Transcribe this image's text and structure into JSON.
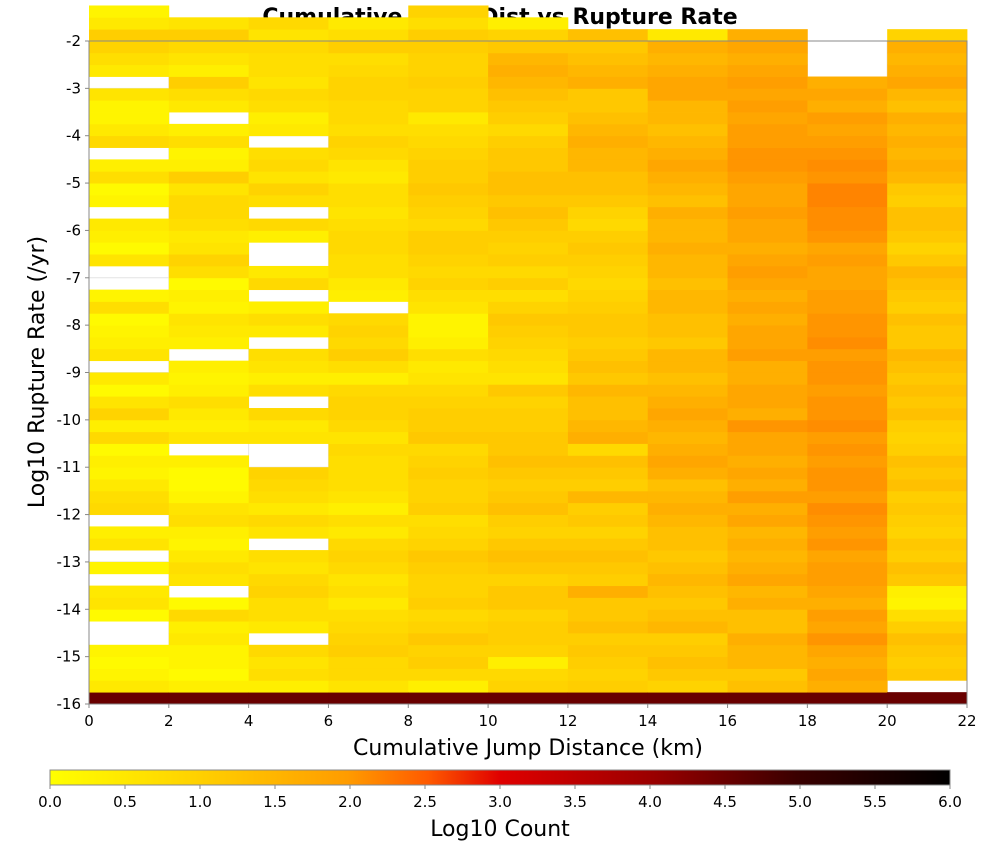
{
  "chart_data": {
    "type": "heatmap",
    "title": "Cumulative Jump Dist vs Rupture Rate",
    "xlabel": "Cumulative Jump Distance (km)",
    "ylabel": "Log10 Rupture Rate (/yr)",
    "xlim": [
      0,
      22
    ],
    "ylim": [
      -16,
      -2
    ],
    "x_ticks": [
      0,
      2,
      4,
      6,
      8,
      10,
      12,
      14,
      16,
      18,
      20,
      22
    ],
    "y_ticks": [
      -2,
      -3,
      -4,
      -5,
      -6,
      -7,
      -8,
      -9,
      -10,
      -11,
      -12,
      -13,
      -14,
      -15,
      -16
    ],
    "x_bin_width": 2,
    "y_bin_width": 0.25,
    "y_start": -16,
    "grid": true,
    "colorbar": {
      "label": "Log10 Count",
      "range": [
        0,
        6
      ],
      "ticks": [
        "0.0",
        "0.5",
        "1.0",
        "1.5",
        "2.0",
        "2.5",
        "3.0",
        "3.5",
        "4.0",
        "4.5",
        "5.0",
        "5.5",
        "6.0"
      ],
      "colors": [
        "#ffff00",
        "#ffa500",
        "#ff4000",
        "#d00000",
        "#500000",
        "#000000"
      ],
      "placement": "bottom"
    },
    "columns": [
      {
        "x0": 0,
        "values": [
          4.9,
          0.4,
          0.2,
          0.1,
          0.2,
          null,
          null,
          0.1,
          0.5,
          0.4,
          null,
          0.2,
          null,
          0.5,
          0.3,
          null,
          0.7,
          0.6,
          0.4,
          0.2,
          0.3,
          0.1,
          0.7,
          0.3,
          0.8,
          0.5,
          0.1,
          0.4,
          null,
          0.5,
          0.3,
          0.2,
          0.1,
          0.6,
          0.2,
          null,
          null,
          0.5,
          0.1,
          0.3,
          0.4,
          null,
          0.2,
          0.1,
          0.6,
          0.3,
          null,
          0.7,
          0.4,
          0.2,
          0.2,
          0.5,
          null,
          0.4,
          0.6,
          0.8,
          0.9,
          0.4,
          0.2
        ]
      },
      {
        "x0": 2,
        "values": [
          4.9,
          0.3,
          0.1,
          0.2,
          0.2,
          0.4,
          0.3,
          0.7,
          0.1,
          null,
          0.5,
          0.6,
          0.4,
          0.2,
          0.3,
          0.6,
          0.5,
          0.2,
          0.1,
          0.1,
          0.3,
          null,
          0.5,
          0.3,
          0.4,
          0.6,
          0.3,
          0.2,
          0.3,
          null,
          0.3,
          0.4,
          0.5,
          0.2,
          0.3,
          0.1,
          0.6,
          0.8,
          0.5,
          0.4,
          0.6,
          0.7,
          0.7,
          0.5,
          0.9,
          0.3,
          0.2,
          0.6,
          0.3,
          null,
          0.4,
          0.6,
          0.9,
          0.3,
          0.5,
          0.7,
          0.9,
          0.5
        ]
      },
      {
        "x0": 4,
        "values": [
          4.9,
          0.3,
          0.6,
          0.5,
          0.7,
          null,
          0.4,
          0.6,
          0.6,
          0.8,
          0.7,
          0.5,
          0.6,
          null,
          0.5,
          0.7,
          0.4,
          0.6,
          0.7,
          0.8,
          null,
          null,
          0.5,
          0.4,
          0.7,
          null,
          0.6,
          0.3,
          0.5,
          0.6,
          null,
          0.4,
          0.6,
          0.3,
          null,
          0.7,
          0.4,
          null,
          null,
          0.3,
          0.7,
          null,
          0.6,
          0.8,
          0.5,
          0.7,
          0.6,
          null,
          0.4,
          0.3,
          0.6,
          0.7,
          0.5,
          0.6,
          0.6,
          0.7,
          0.5,
          0.7
        ]
      },
      {
        "x0": 6,
        "values": [
          4.9,
          0.5,
          0.7,
          0.7,
          0.9,
          0.8,
          0.7,
          0.6,
          0.4,
          0.6,
          0.5,
          0.7,
          0.8,
          0.7,
          0.4,
          0.6,
          0.3,
          0.5,
          0.6,
          0.6,
          0.6,
          0.7,
          0.5,
          0.7,
          0.8,
          0.8,
          0.7,
          0.3,
          0.6,
          0.9,
          0.7,
          0.8,
          0.7,
          null,
          0.3,
          0.4,
          0.6,
          0.6,
          0.7,
          0.7,
          0.6,
          0.5,
          0.6,
          0.6,
          0.4,
          0.5,
          0.7,
          0.8,
          0.6,
          0.7,
          0.7,
          0.8,
          0.8,
          0.7,
          0.6,
          0.9,
          0.6,
          0.4
        ]
      },
      {
        "x0": 8,
        "values": [
          4.9,
          0.3,
          0.7,
          0.9,
          0.8,
          1.0,
          0.8,
          0.7,
          0.9,
          0.8,
          0.8,
          0.9,
          1.0,
          0.8,
          0.7,
          0.6,
          0.9,
          0.8,
          0.8,
          0.9,
          0.8,
          0.7,
          1.0,
          0.9,
          0.9,
          0.8,
          0.7,
          0.5,
          0.4,
          0.6,
          0.3,
          0.2,
          0.2,
          0.5,
          0.6,
          0.8,
          0.7,
          0.8,
          0.9,
          0.9,
          0.7,
          0.8,
          0.9,
          1.0,
          0.9,
          0.9,
          0.8,
          0.7,
          0.6,
          0.4,
          0.8,
          0.8,
          0.9,
          0.8,
          0.8,
          0.9,
          0.9,
          0.6,
          0.8
        ]
      },
      {
        "x0": 10,
        "values": [
          4.9,
          0.8,
          0.7,
          0.3,
          0.8,
          0.9,
          0.9,
          0.8,
          1.0,
          1.0,
          0.8,
          1.0,
          1.1,
          1.0,
          0.8,
          0.9,
          1.1,
          1.0,
          0.9,
          1.0,
          1.1,
          1.0,
          1.0,
          0.9,
          0.9,
          0.8,
          1.0,
          0.5,
          0.6,
          0.7,
          0.8,
          0.9,
          1.0,
          0.8,
          0.6,
          0.9,
          0.7,
          0.9,
          0.8,
          0.9,
          1.0,
          1.1,
          1.0,
          1.1,
          1.1,
          1.0,
          1.0,
          0.9,
          0.7,
          0.9,
          1.0,
          1.1,
          1.2,
          1.3,
          1.2,
          1.0,
          0.8,
          0.3
        ]
      },
      {
        "x0": 12,
        "values": [
          4.9,
          0.9,
          0.8,
          0.9,
          1.0,
          0.9,
          1.1,
          1.0,
          1.0,
          1.3,
          0.9,
          1.0,
          1.1,
          1.0,
          0.8,
          1.0,
          0.9,
          1.2,
          0.9,
          1.0,
          1.1,
          0.7,
          1.3,
          1.2,
          1.1,
          1.1,
          1.2,
          1.0,
          1.1,
          1.0,
          0.9,
          1.0,
          1.0,
          0.9,
          0.8,
          0.7,
          0.8,
          0.9,
          1.0,
          0.9,
          0.7,
          0.8,
          1.0,
          1.1,
          1.1,
          1.2,
          1.2,
          1.3,
          1.2,
          1.1,
          1.0,
          1.0,
          1.3,
          1.2,
          1.1,
          1.0,
          1.1
        ]
      },
      {
        "x0": 14,
        "values": [
          4.9,
          0.8,
          1.0,
          1.1,
          1.0,
          0.9,
          1.2,
          1.1,
          1.0,
          1.1,
          1.2,
          1.1,
          1.0,
          1.1,
          1.1,
          1.2,
          1.3,
          1.2,
          1.1,
          1.3,
          1.4,
          1.3,
          1.2,
          1.3,
          1.4,
          1.3,
          1.2,
          1.1,
          1.2,
          1.2,
          1.0,
          1.1,
          1.1,
          1.2,
          1.2,
          1.1,
          1.2,
          1.2,
          1.3,
          1.2,
          1.2,
          1.3,
          1.1,
          1.2,
          1.3,
          1.4,
          1.3,
          1.2,
          1.1,
          1.2,
          1.2,
          1.4,
          1.4,
          1.3,
          1.2,
          1.3,
          0.4
        ]
      },
      {
        "x0": 16,
        "values": [
          4.9,
          1.1,
          1.0,
          1.2,
          1.2,
          1.3,
          1.1,
          1.1,
          1.3,
          1.2,
          1.4,
          1.3,
          1.2,
          1.3,
          1.2,
          1.4,
          1.3,
          1.5,
          1.3,
          1.4,
          1.3,
          1.4,
          1.4,
          1.6,
          1.3,
          1.4,
          1.4,
          1.3,
          1.3,
          1.5,
          1.4,
          1.4,
          1.3,
          1.4,
          1.3,
          1.4,
          1.5,
          1.4,
          1.3,
          1.4,
          1.4,
          1.5,
          1.4,
          1.4,
          1.5,
          1.6,
          1.6,
          1.5,
          1.5,
          1.4,
          1.5,
          1.4,
          1.5,
          1.4,
          1.3,
          1.4,
          1.3
        ]
      },
      {
        "x0": 18,
        "values": [
          4.9,
          1.3,
          1.4,
          1.3,
          1.4,
          1.6,
          1.4,
          1.5,
          1.3,
          1.4,
          1.5,
          1.5,
          1.4,
          1.6,
          1.5,
          1.6,
          1.7,
          1.5,
          1.6,
          1.6,
          1.5,
          1.6,
          1.5,
          1.7,
          1.6,
          1.6,
          1.5,
          1.6,
          1.6,
          1.5,
          1.7,
          1.6,
          1.6,
          1.5,
          1.5,
          1.4,
          1.4,
          1.5,
          1.4,
          1.6,
          1.7,
          1.7,
          1.8,
          1.8,
          1.6,
          1.7,
          1.6,
          1.5,
          1.4,
          1.5,
          1.3,
          1.4,
          1.3
        ]
      },
      {
        "x0": 20,
        "values": [
          4.9,
          null,
          1.0,
          0.9,
          1.0,
          1.1,
          0.9,
          0.6,
          0.2,
          0.3,
          1.0,
          1.1,
          0.9,
          1.0,
          0.8,
          0.9,
          1.0,
          0.9,
          1.1,
          1.0,
          1.1,
          0.9,
          0.8,
          0.9,
          1.1,
          1.0,
          1.1,
          1.0,
          1.1,
          1.2,
          1.0,
          1.0,
          1.1,
          0.9,
          1.0,
          1.1,
          1.2,
          1.0,
          0.8,
          1.0,
          1.1,
          1.1,
          0.9,
          1.0,
          1.2,
          1.3,
          1.2,
          1.3,
          1.2,
          1.3,
          1.1,
          1.2,
          1.4,
          1.3,
          1.2,
          1.3,
          0.8
        ]
      }
    ]
  }
}
